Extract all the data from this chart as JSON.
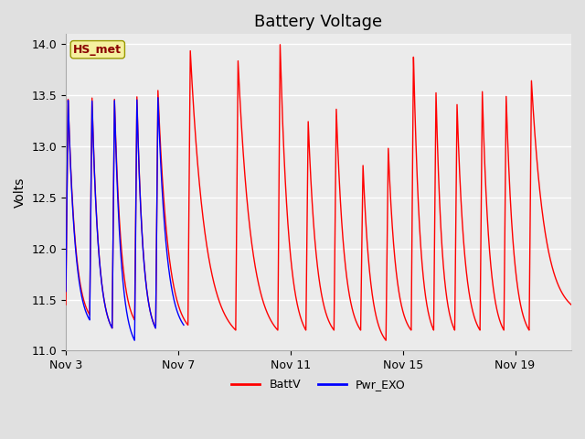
{
  "title": "Battery Voltage",
  "ylabel": "Volts",
  "ylim": [
    11.0,
    14.1
  ],
  "yticks": [
    11.0,
    11.5,
    12.0,
    12.5,
    13.0,
    13.5,
    14.0
  ],
  "xtick_labels": [
    "Nov 3",
    "Nov 7",
    "Nov 11",
    "Nov 15",
    "Nov 19"
  ],
  "xtick_positions": [
    0,
    4,
    8,
    12,
    16
  ],
  "xlim": [
    0,
    18
  ],
  "annotation_text": "HS_met",
  "fig_bg_color": "#e0e0e0",
  "ax_bg_color": "#ebebeb",
  "line_color_battv": "red",
  "line_color_pwr": "blue",
  "legend_labels": [
    "BattV",
    "Pwr_EXO"
  ],
  "title_fontsize": 13,
  "axis_fontsize": 10,
  "tick_fontsize": 9,
  "battv_cycles": [
    {
      "start": 0.0,
      "peak": 13.48,
      "min_start": 11.45,
      "min_end": 11.35
    },
    {
      "start": 0.85,
      "peak": 13.5,
      "min_start": 11.35,
      "min_end": 11.22
    },
    {
      "start": 1.65,
      "peak": 13.48,
      "min_start": 11.22,
      "min_end": 11.3
    },
    {
      "start": 2.45,
      "peak": 13.5,
      "min_start": 11.3,
      "min_end": 11.22
    },
    {
      "start": 3.2,
      "peak": 13.55,
      "min_start": 11.22,
      "min_end": 11.25
    },
    {
      "start": 4.35,
      "peak": 13.95,
      "min_start": 11.25,
      "min_end": 11.2
    },
    {
      "start": 6.05,
      "peak": 13.85,
      "min_start": 11.2,
      "min_end": 11.2
    },
    {
      "start": 7.55,
      "peak": 14.0,
      "min_start": 11.2,
      "min_end": 11.2
    },
    {
      "start": 8.55,
      "peak": 13.25,
      "min_start": 11.2,
      "min_end": 11.2
    },
    {
      "start": 9.55,
      "peak": 13.38,
      "min_start": 11.2,
      "min_end": 11.2
    },
    {
      "start": 10.5,
      "peak": 12.83,
      "min_start": 11.2,
      "min_end": 11.1
    },
    {
      "start": 11.4,
      "peak": 13.0,
      "min_start": 11.1,
      "min_end": 11.2
    },
    {
      "start": 12.3,
      "peak": 13.9,
      "min_start": 11.2,
      "min_end": 11.2
    },
    {
      "start": 13.1,
      "peak": 13.55,
      "min_start": 11.2,
      "min_end": 11.2
    },
    {
      "start": 13.85,
      "peak": 13.42,
      "min_start": 11.2,
      "min_end": 11.2
    },
    {
      "start": 14.75,
      "peak": 13.55,
      "min_start": 11.2,
      "min_end": 11.2
    },
    {
      "start": 15.6,
      "peak": 13.5,
      "min_start": 11.2,
      "min_end": 11.2
    },
    {
      "start": 16.5,
      "peak": 13.65,
      "min_start": 11.2,
      "min_end": 11.45
    }
  ],
  "pwr_cycles": [
    {
      "start": 0.0,
      "peak": 13.47,
      "min_start": 11.58,
      "min_end": 11.3
    },
    {
      "start": 0.85,
      "peak": 13.47,
      "min_start": 11.3,
      "min_end": 11.22
    },
    {
      "start": 1.65,
      "peak": 13.47,
      "min_start": 11.22,
      "min_end": 11.1
    },
    {
      "start": 2.45,
      "peak": 13.47,
      "min_start": 11.1,
      "min_end": 11.22
    },
    {
      "start": 3.2,
      "peak": 13.48,
      "min_start": 11.22,
      "min_end": 11.25
    }
  ],
  "pwr_end": 4.2,
  "charge_dur": 0.08,
  "n_days": 18,
  "n_pts": 5000
}
